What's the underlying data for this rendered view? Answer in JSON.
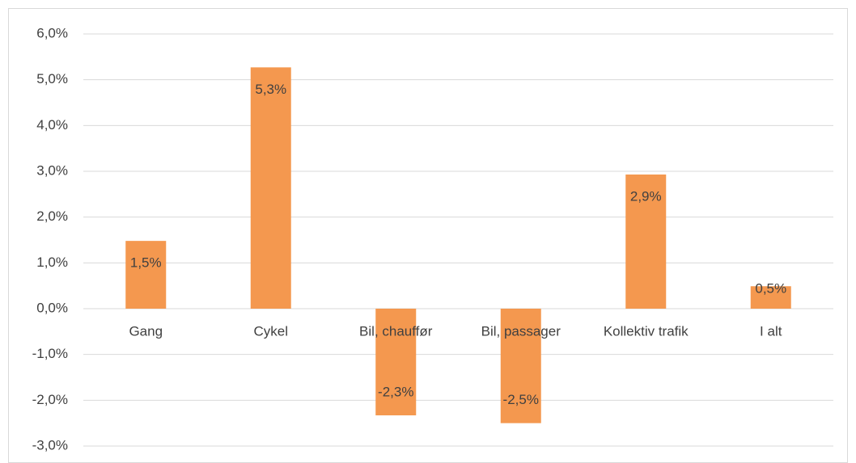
{
  "chart_data": {
    "type": "bar",
    "categories": [
      "Gang",
      "Cykel",
      "Bil, chauffør",
      "Bil, passager",
      "Kollektiv trafik",
      "I alt"
    ],
    "values": [
      1.48,
      5.27,
      -2.33,
      -2.5,
      2.93,
      0.49
    ],
    "value_labels": [
      "1,5%",
      "5,3%",
      "-2,3%",
      "-2,5%",
      "2,9%",
      "0,5%"
    ],
    "color": "#f4984f",
    "ylim": [
      -3,
      6
    ],
    "yticks": [
      {
        "value": -3,
        "label": "-3,0%"
      },
      {
        "value": -2,
        "label": "-2,0%"
      },
      {
        "value": -1,
        "label": "-1,0%"
      },
      {
        "value": 0,
        "label": "0,0%"
      },
      {
        "value": 1,
        "label": "1,0%"
      },
      {
        "value": 2,
        "label": "2,0%"
      },
      {
        "value": 3,
        "label": "3,0%"
      },
      {
        "value": 4,
        "label": "4,0%"
      },
      {
        "value": 5,
        "label": "5,0%"
      },
      {
        "value": 6,
        "label": "6,0%"
      }
    ],
    "grid": true
  }
}
